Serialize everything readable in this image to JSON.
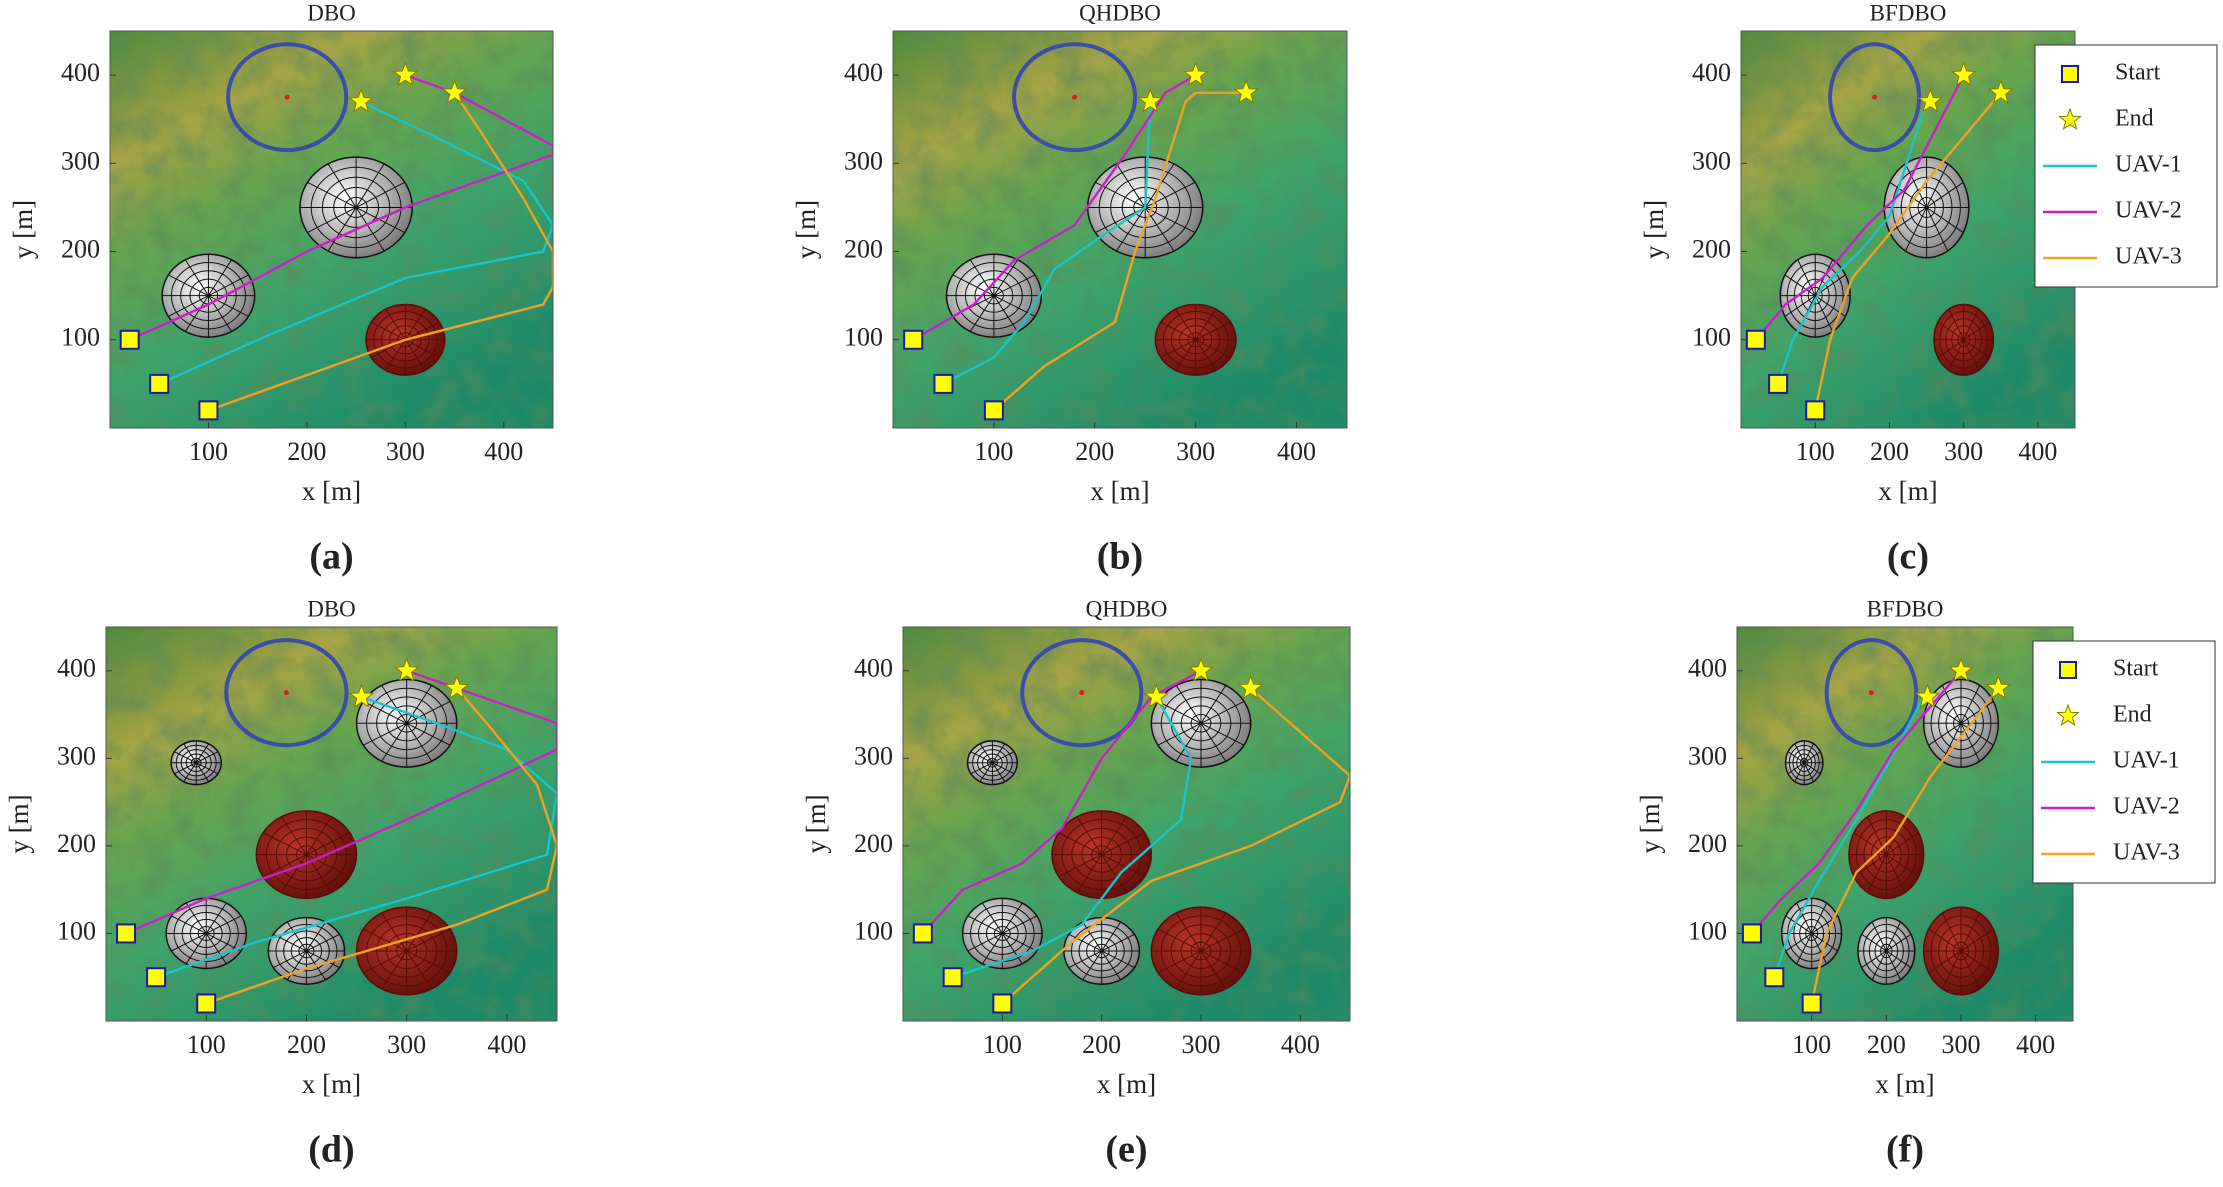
{
  "chart_data": [
    {
      "type": "path",
      "title": "DBO",
      "xlabel": "x [m]",
      "ylabel": "y [m]",
      "caption": "(a)",
      "xlim": [
        0,
        450
      ],
      "ylim": [
        0,
        450
      ],
      "xticks": [
        100,
        200,
        300,
        400
      ],
      "yticks": [
        100,
        200,
        300,
        400
      ],
      "obstacles": [
        {
          "x": 180,
          "y": 375,
          "r": 60,
          "color": "#3a4ea8",
          "fill": false
        },
        {
          "x": 250,
          "y": 250,
          "r": 57,
          "color": "#c8c8c8",
          "fill": true
        },
        {
          "x": 100,
          "y": 150,
          "r": 47,
          "color": "#c8c8c8",
          "fill": true
        },
        {
          "x": 300,
          "y": 100,
          "r": 40,
          "color": "#8a1a12",
          "fill": true
        }
      ],
      "series": [
        {
          "marker": "square",
          "color": "#ffff00",
          "x": [
            20,
            50,
            100
          ],
          "y": [
            100,
            50,
            20
          ]
        },
        {
          "marker": "star",
          "color": "#ffff00",
          "x": [
            255,
            300,
            350
          ],
          "y": [
            370,
            400,
            380
          ]
        },
        {
          "marker": "line",
          "color": "#17c5cc",
          "x": [
            50,
            150,
            300,
            440,
            450,
            420,
            330,
            255
          ],
          "y": [
            50,
            100,
            170,
            200,
            230,
            280,
            330,
            370
          ]
        },
        {
          "marker": "line",
          "color": "#c91fc9",
          "x": [
            20,
            100,
            200,
            300,
            450,
            450,
            350,
            300
          ],
          "y": [
            100,
            140,
            200,
            250,
            310,
            320,
            380,
            400
          ]
        },
        {
          "marker": "line",
          "color": "#f0a323",
          "x": [
            100,
            200,
            300,
            440,
            450,
            450,
            420,
            380,
            350
          ],
          "y": [
            20,
            60,
            100,
            140,
            160,
            200,
            260,
            330,
            380
          ]
        }
      ]
    },
    {
      "type": "path",
      "title": "QHDBO",
      "xlabel": "x [m]",
      "ylabel": "y [m]",
      "caption": "(b)",
      "xlim": [
        0,
        450
      ],
      "ylim": [
        0,
        450
      ],
      "xticks": [
        100,
        200,
        300,
        400
      ],
      "yticks": [
        100,
        200,
        300,
        400
      ],
      "obstacles": [
        {
          "x": 180,
          "y": 375,
          "r": 60,
          "color": "#3a4ea8",
          "fill": false
        },
        {
          "x": 250,
          "y": 250,
          "r": 57,
          "color": "#c8c8c8",
          "fill": true
        },
        {
          "x": 100,
          "y": 150,
          "r": 47,
          "color": "#c8c8c8",
          "fill": true
        },
        {
          "x": 300,
          "y": 100,
          "r": 40,
          "color": "#8a1a12",
          "fill": true
        }
      ],
      "series": [
        {
          "marker": "square",
          "color": "#ffff00",
          "x": [
            20,
            50,
            100
          ],
          "y": [
            100,
            50,
            20
          ]
        },
        {
          "marker": "star",
          "color": "#ffff00",
          "x": [
            255,
            300,
            350
          ],
          "y": [
            370,
            400,
            380
          ]
        },
        {
          "marker": "line",
          "color": "#17c5cc",
          "x": [
            50,
            100,
            130,
            160,
            210,
            250,
            255
          ],
          "y": [
            50,
            80,
            120,
            180,
            220,
            250,
            370
          ]
        },
        {
          "marker": "line",
          "color": "#c91fc9",
          "x": [
            20,
            80,
            120,
            180,
            230,
            270,
            300
          ],
          "y": [
            100,
            140,
            190,
            230,
            310,
            380,
            400
          ]
        },
        {
          "marker": "line",
          "color": "#f0a323",
          "x": [
            100,
            150,
            220,
            240,
            260,
            290,
            300,
            350
          ],
          "y": [
            20,
            70,
            120,
            200,
            260,
            370,
            380,
            380
          ]
        }
      ]
    },
    {
      "type": "path",
      "title": "BFDBO",
      "xlabel": "x [m]",
      "ylabel": "y [m]",
      "caption": "(c)",
      "legend": "upper right",
      "xlim": [
        0,
        450
      ],
      "ylim": [
        0,
        450
      ],
      "xticks": [
        100,
        200,
        300,
        400
      ],
      "yticks": [
        100,
        200,
        300,
        400
      ],
      "obstacles": [
        {
          "x": 180,
          "y": 375,
          "r": 60,
          "color": "#3a4ea8",
          "fill": false
        },
        {
          "x": 250,
          "y": 250,
          "r": 57,
          "color": "#c8c8c8",
          "fill": true
        },
        {
          "x": 100,
          "y": 150,
          "r": 47,
          "color": "#c8c8c8",
          "fill": true
        },
        {
          "x": 300,
          "y": 100,
          "r": 40,
          "color": "#8a1a12",
          "fill": true
        }
      ],
      "series": [
        {
          "name": "Start",
          "marker": "square",
          "color": "#ffff00",
          "x": [
            20,
            50,
            100
          ],
          "y": [
            100,
            50,
            20
          ]
        },
        {
          "name": "End",
          "marker": "star",
          "color": "#ffff00",
          "x": [
            255,
            300,
            350
          ],
          "y": [
            370,
            400,
            380
          ]
        },
        {
          "name": "UAV-1",
          "marker": "line",
          "color": "#17c5cc",
          "x": [
            50,
            70,
            110,
            160,
            200,
            250
          ],
          "y": [
            50,
            100,
            160,
            200,
            240,
            370
          ]
        },
        {
          "name": "UAV-2",
          "marker": "line",
          "color": "#c91fc9",
          "x": [
            20,
            60,
            110,
            170,
            220,
            300
          ],
          "y": [
            100,
            140,
            170,
            230,
            270,
            400
          ]
        },
        {
          "name": "UAV-3",
          "marker": "line",
          "color": "#f0a323",
          "x": [
            100,
            120,
            150,
            200,
            250,
            350
          ],
          "y": [
            20,
            100,
            170,
            220,
            280,
            380
          ]
        }
      ]
    },
    {
      "type": "path",
      "title": "DBO",
      "xlabel": "x [m]",
      "ylabel": "y [m]",
      "caption": "(d)",
      "xlim": [
        0,
        450
      ],
      "ylim": [
        0,
        450
      ],
      "xticks": [
        100,
        200,
        300,
        400
      ],
      "yticks": [
        100,
        200,
        300,
        400
      ],
      "obstacles": [
        {
          "x": 180,
          "y": 375,
          "r": 60,
          "color": "#3a4ea8",
          "fill": false
        },
        {
          "x": 90,
          "y": 295,
          "r": 25,
          "color": "#c8c8c8",
          "fill": true
        },
        {
          "x": 300,
          "y": 340,
          "r": 50,
          "color": "#c8c8c8",
          "fill": true
        },
        {
          "x": 200,
          "y": 190,
          "r": 50,
          "color": "#8a1a12",
          "fill": true
        },
        {
          "x": 100,
          "y": 100,
          "r": 40,
          "color": "#c8c8c8",
          "fill": true
        },
        {
          "x": 200,
          "y": 80,
          "r": 38,
          "color": "#c8c8c8",
          "fill": true
        },
        {
          "x": 300,
          "y": 80,
          "r": 50,
          "color": "#8a1a12",
          "fill": true
        }
      ],
      "series": [
        {
          "marker": "square",
          "color": "#ffff00",
          "x": [
            20,
            50,
            100
          ],
          "y": [
            100,
            50,
            20
          ]
        },
        {
          "marker": "star",
          "color": "#ffff00",
          "x": [
            255,
            300,
            350
          ],
          "y": [
            370,
            400,
            380
          ]
        },
        {
          "marker": "line",
          "color": "#17c5cc",
          "x": [
            50,
            150,
            300,
            440,
            450,
            400,
            330,
            255
          ],
          "y": [
            50,
            90,
            140,
            190,
            260,
            310,
            340,
            370
          ]
        },
        {
          "marker": "line",
          "color": "#c91fc9",
          "x": [
            20,
            100,
            200,
            300,
            450,
            450,
            350,
            300
          ],
          "y": [
            100,
            140,
            180,
            230,
            310,
            340,
            380,
            400
          ]
        },
        {
          "marker": "line",
          "color": "#f0a323",
          "x": [
            100,
            200,
            350,
            440,
            450,
            430,
            380,
            350
          ],
          "y": [
            20,
            60,
            110,
            150,
            200,
            270,
            340,
            380
          ]
        }
      ]
    },
    {
      "type": "path",
      "title": "QHDBO",
      "xlabel": "x [m]",
      "ylabel": "y [m]",
      "caption": "(e)",
      "xlim": [
        0,
        450
      ],
      "ylim": [
        0,
        450
      ],
      "xticks": [
        100,
        200,
        300,
        400
      ],
      "yticks": [
        100,
        200,
        300,
        400
      ],
      "obstacles": [
        {
          "x": 180,
          "y": 375,
          "r": 60,
          "color": "#3a4ea8",
          "fill": false
        },
        {
          "x": 90,
          "y": 295,
          "r": 25,
          "color": "#c8c8c8",
          "fill": true
        },
        {
          "x": 300,
          "y": 340,
          "r": 50,
          "color": "#c8c8c8",
          "fill": true
        },
        {
          "x": 200,
          "y": 190,
          "r": 50,
          "color": "#8a1a12",
          "fill": true
        },
        {
          "x": 100,
          "y": 100,
          "r": 40,
          "color": "#c8c8c8",
          "fill": true
        },
        {
          "x": 200,
          "y": 80,
          "r": 38,
          "color": "#c8c8c8",
          "fill": true
        },
        {
          "x": 300,
          "y": 80,
          "r": 50,
          "color": "#8a1a12",
          "fill": true
        }
      ],
      "series": [
        {
          "marker": "square",
          "color": "#ffff00",
          "x": [
            20,
            50,
            100
          ],
          "y": [
            100,
            50,
            20
          ]
        },
        {
          "marker": "star",
          "color": "#ffff00",
          "x": [
            255,
            300,
            350
          ],
          "y": [
            370,
            400,
            380
          ]
        },
        {
          "marker": "line",
          "color": "#17c5cc",
          "x": [
            50,
            130,
            180,
            220,
            280,
            290,
            255
          ],
          "y": [
            50,
            80,
            110,
            170,
            230,
            300,
            370
          ]
        },
        {
          "marker": "line",
          "color": "#c91fc9",
          "x": [
            20,
            60,
            120,
            160,
            200,
            250,
            300
          ],
          "y": [
            100,
            150,
            180,
            220,
            300,
            370,
            400
          ]
        },
        {
          "marker": "line",
          "color": "#f0a323",
          "x": [
            100,
            170,
            250,
            350,
            440,
            450,
            380,
            350
          ],
          "y": [
            20,
            90,
            160,
            200,
            250,
            280,
            350,
            380
          ]
        }
      ]
    },
    {
      "type": "path",
      "title": "BFDBO",
      "xlabel": "x [m]",
      "ylabel": "y [m]",
      "caption": "(f)",
      "legend": "upper right",
      "xlim": [
        0,
        450
      ],
      "ylim": [
        0,
        450
      ],
      "xticks": [
        100,
        200,
        300,
        400
      ],
      "yticks": [
        100,
        200,
        300,
        400
      ],
      "obstacles": [
        {
          "x": 180,
          "y": 375,
          "r": 60,
          "color": "#3a4ea8",
          "fill": false
        },
        {
          "x": 90,
          "y": 295,
          "r": 25,
          "color": "#c8c8c8",
          "fill": true
        },
        {
          "x": 300,
          "y": 340,
          "r": 50,
          "color": "#c8c8c8",
          "fill": true
        },
        {
          "x": 200,
          "y": 190,
          "r": 50,
          "color": "#8a1a12",
          "fill": true
        },
        {
          "x": 100,
          "y": 100,
          "r": 40,
          "color": "#c8c8c8",
          "fill": true
        },
        {
          "x": 200,
          "y": 80,
          "r": 38,
          "color": "#c8c8c8",
          "fill": true
        },
        {
          "x": 300,
          "y": 80,
          "r": 50,
          "color": "#8a1a12",
          "fill": true
        }
      ],
      "series": [
        {
          "name": "Start",
          "marker": "square",
          "color": "#ffff00",
          "x": [
            20,
            50,
            100
          ],
          "y": [
            100,
            50,
            20
          ]
        },
        {
          "name": "End",
          "marker": "star",
          "color": "#ffff00",
          "x": [
            255,
            300,
            350
          ],
          "y": [
            370,
            400,
            380
          ]
        },
        {
          "name": "UAV-1",
          "marker": "line",
          "color": "#17c5cc",
          "x": [
            50,
            70,
            110,
            160,
            200,
            250
          ],
          "y": [
            50,
            100,
            160,
            230,
            290,
            370
          ]
        },
        {
          "name": "UAV-2",
          "marker": "line",
          "color": "#c91fc9",
          "x": [
            20,
            60,
            110,
            160,
            210,
            300
          ],
          "y": [
            100,
            140,
            180,
            240,
            310,
            400
          ]
        },
        {
          "name": "UAV-3",
          "marker": "line",
          "color": "#f0a323",
          "x": [
            100,
            120,
            160,
            210,
            260,
            350
          ],
          "y": [
            20,
            100,
            170,
            210,
            280,
            380
          ]
        }
      ]
    }
  ]
}
